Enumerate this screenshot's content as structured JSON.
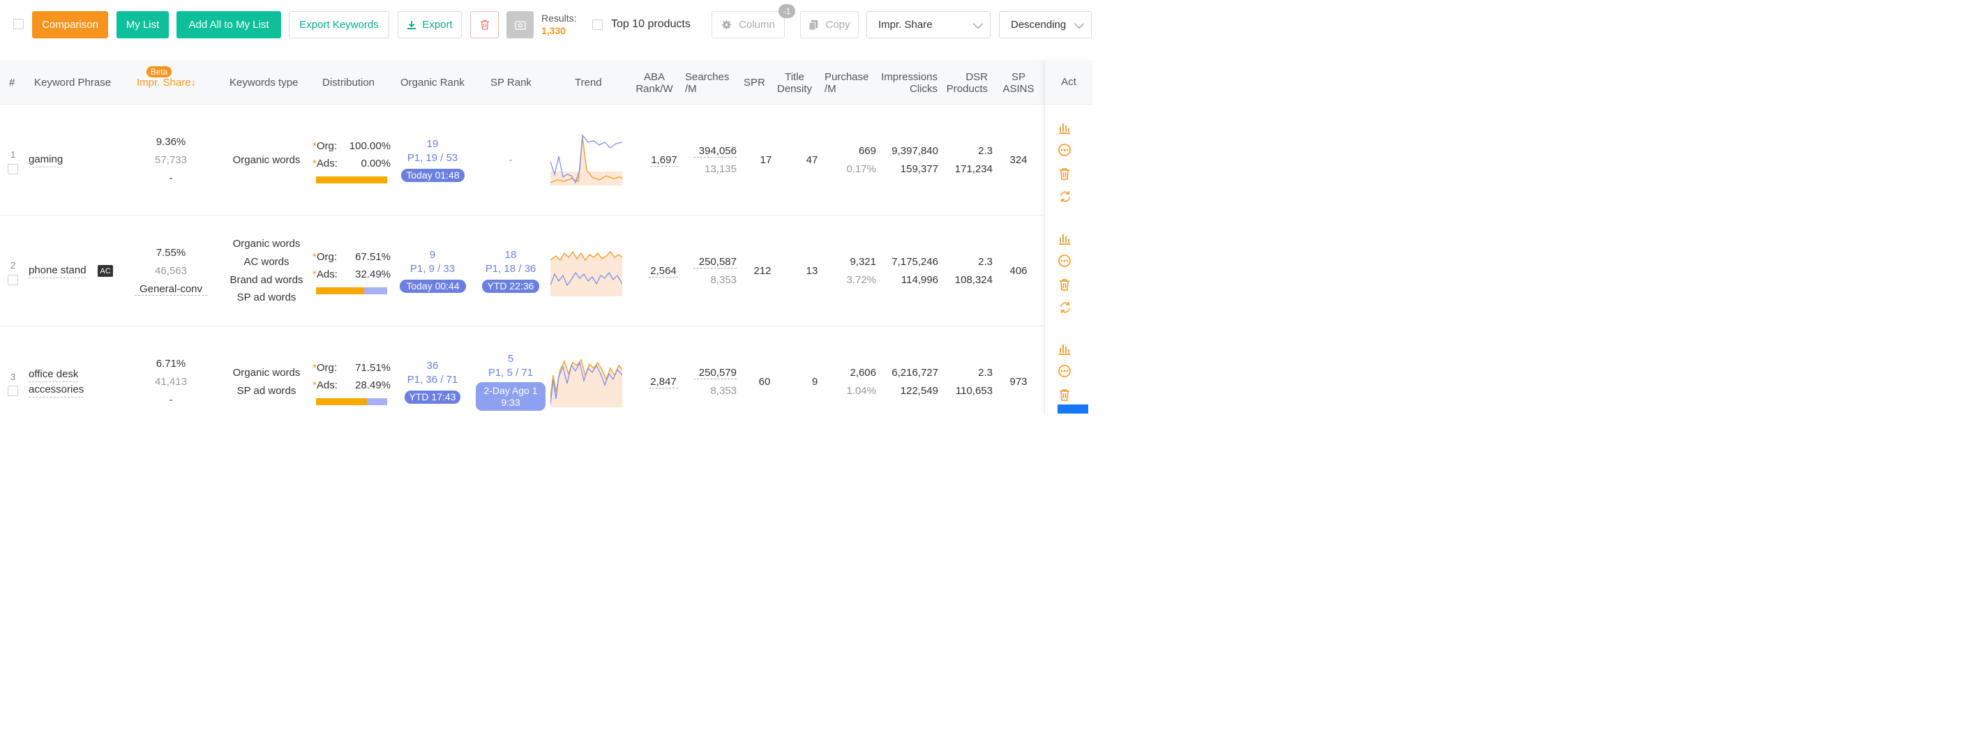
{
  "toolbar": {
    "comparison": "Comparison",
    "my_list": "My List",
    "add_all": "Add All to My List",
    "export_keywords": "Export Keywords",
    "export": "Export",
    "results_label": "Results:",
    "results_value": "1,330",
    "top10": "Top 10 products",
    "column": "Column",
    "column_badge": "-1",
    "copy": "Copy",
    "sort_field": "Impr. Share",
    "sort_order": "Descending"
  },
  "colors": {
    "accent_orange": "#f7941d",
    "accent_green": "#0dbf9a",
    "rank_blue": "#6b7fe0",
    "ads_bar": "#a6b0f5",
    "org_bar": "#f7a900"
  },
  "headers": {
    "num": "#",
    "keyword": "Keyword Phrase",
    "beta": "Beta",
    "impr_share": "Impr. Share↓",
    "kw_type": "Keywords type",
    "distribution": "Distribution",
    "organic_rank": "Organic Rank",
    "sp_rank": "SP Rank",
    "trend": "Trend",
    "aba_1": "ABA",
    "aba_2": "Rank/W",
    "searches_1": "Searches",
    "searches_2": "/M",
    "spr": "SPR",
    "title_density_1": "Title",
    "title_density_2": "Density",
    "purchase_1": "Purchase",
    "purchase_2": "/M",
    "impressions_1": "Impressions",
    "impressions_2": "Clicks",
    "dsr_1": "DSR",
    "dsr_2": "Products",
    "sp_asins_1": "SP",
    "sp_asins_2": "ASINS",
    "act": "Act"
  },
  "rows": [
    {
      "num": "1",
      "keyword_1": "gaming",
      "keyword_2": "",
      "ac": "",
      "impr_share": "9.36%",
      "impr_count": "57,733",
      "impr_conv": "-",
      "types": [
        "Organic words"
      ],
      "org_label": "Org:",
      "org_pct": "100.00%",
      "ads_label": "Ads:",
      "ads_pct": "0.00%",
      "org_fraction": 1.0,
      "org_rank": "19",
      "org_rank_detail": "P1, 19 / 53",
      "org_time": "Today 01:48",
      "sp_rank": "-",
      "sp_rank_detail": "",
      "sp_time": "",
      "aba_rank": "1,697",
      "searches": "394,056",
      "searches_sub": "13,135",
      "spr": "17",
      "title_density": "47",
      "purchase": "669",
      "purchase_pct": "0.17%",
      "impressions": "9,397,840",
      "clicks": "159,377",
      "dsr": "2.3",
      "products": "171,234",
      "sp_asins": "324"
    },
    {
      "num": "2",
      "keyword_1": "phone stand",
      "keyword_2": "",
      "ac": "AC",
      "impr_share": "7.55%",
      "impr_count": "46,563",
      "impr_conv": "General-conv",
      "types": [
        "Organic words",
        "AC words",
        "Brand ad words",
        "SP ad words"
      ],
      "org_label": "Org:",
      "org_pct": "67.51%",
      "ads_label": "Ads:",
      "ads_pct": "32.49%",
      "org_fraction": 0.6751,
      "org_rank": "9",
      "org_rank_detail": "P1, 9 / 33",
      "org_time": "Today 00:44",
      "sp_rank": "18",
      "sp_rank_detail": "P1, 18 / 36",
      "sp_time": "YTD 22:36",
      "aba_rank": "2,564",
      "searches": "250,587",
      "searches_sub": "8,353",
      "spr": "212",
      "title_density": "13",
      "purchase": "9,321",
      "purchase_pct": "3.72%",
      "impressions": "7,175,246",
      "clicks": "114,996",
      "dsr": "2.3",
      "products": "108,324",
      "sp_asins": "406"
    },
    {
      "num": "3",
      "keyword_1": "office desk",
      "keyword_2": "accessories",
      "ac": "",
      "impr_share": "6.71%",
      "impr_count": "41,413",
      "impr_conv": "-",
      "types": [
        "Organic words",
        "SP ad words"
      ],
      "org_label": "Org:",
      "org_pct": "71.51%",
      "ads_label": "Ads:",
      "ads_pct": "28.49%",
      "org_fraction": 0.7151,
      "org_rank": "36",
      "org_rank_detail": "P1, 36 / 71",
      "org_time": "YTD 17:43",
      "sp_rank": "5",
      "sp_rank_detail": "P1, 5 / 71",
      "sp_time_1": "2-Day Ago 1",
      "sp_time_2": "9:33",
      "aba_rank": "2,847",
      "searches": "250,579",
      "searches_sub": "8,353",
      "spr": "60",
      "title_density": "9",
      "purchase": "2,606",
      "purchase_pct": "1.04%",
      "impressions": "6,216,727",
      "clicks": "122,549",
      "dsr": "2.3",
      "products": "110,653",
      "sp_asins": "973"
    }
  ],
  "icons": {
    "chart": "bar-chart-icon",
    "more": "more-icon",
    "delete": "trash-icon",
    "refresh": "refresh-icon"
  }
}
